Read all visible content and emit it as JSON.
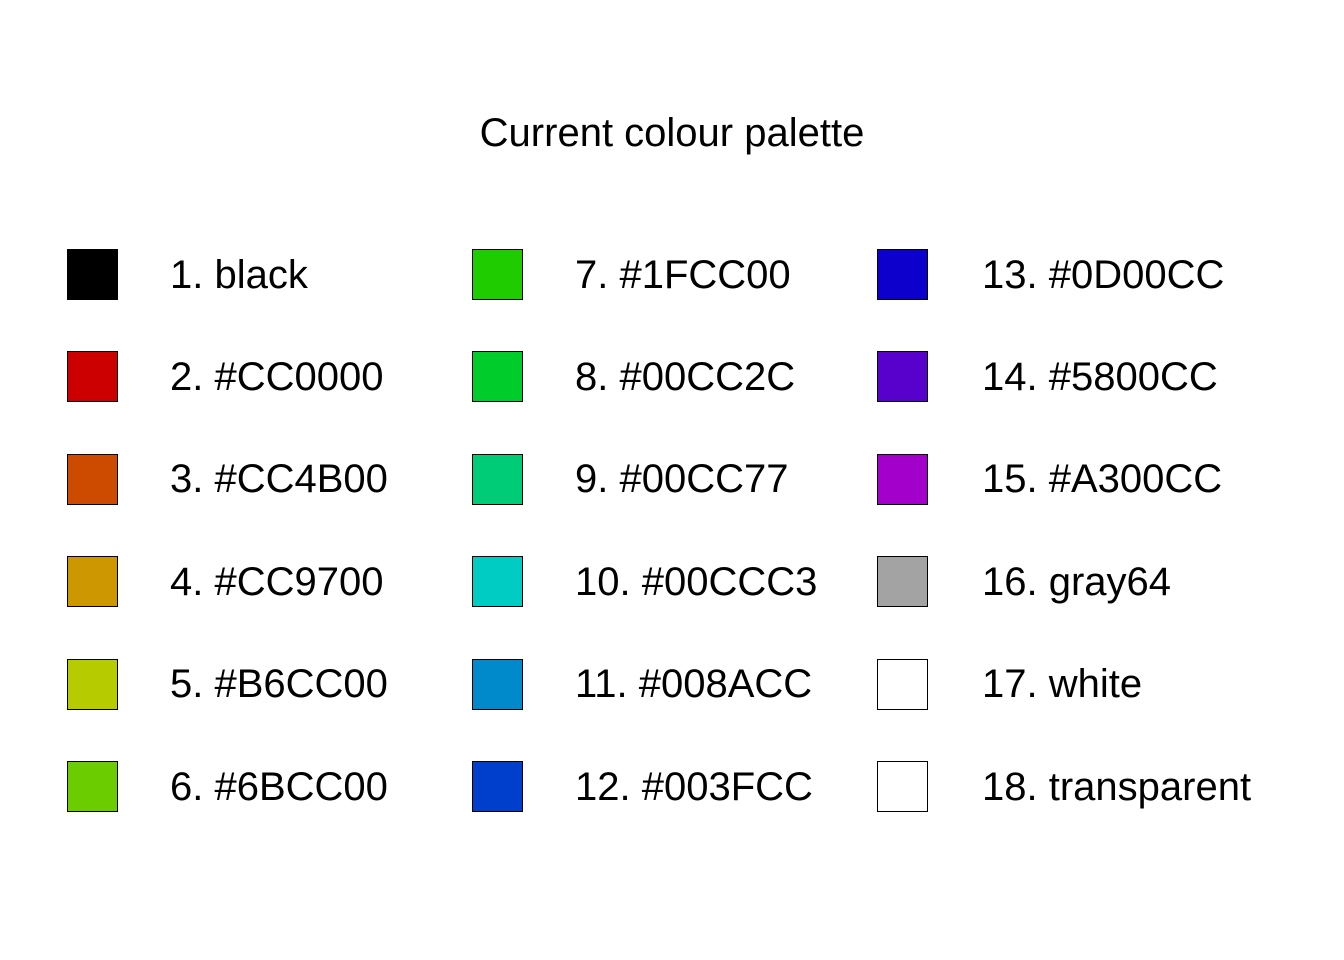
{
  "chart_data": {
    "type": "table",
    "title": "Current colour palette",
    "layout": "3 columns x 6 rows, filled column-wise",
    "entries": [
      {
        "label": "1. black",
        "color": "#000000"
      },
      {
        "label": "2. #CC0000",
        "color": "#CC0000"
      },
      {
        "label": "3. #CC4B00",
        "color": "#CC4B00"
      },
      {
        "label": "4. #CC9700",
        "color": "#CC9700"
      },
      {
        "label": "5. #B6CC00",
        "color": "#B6CC00"
      },
      {
        "label": "6. #6BCC00",
        "color": "#6BCC00"
      },
      {
        "label": "7. #1FCC00",
        "color": "#1FCC00"
      },
      {
        "label": "8. #00CC2C",
        "color": "#00CC2C"
      },
      {
        "label": "9. #00CC77",
        "color": "#00CC77"
      },
      {
        "label": "10. #00CCC3",
        "color": "#00CCC3"
      },
      {
        "label": "11. #008ACC",
        "color": "#008ACC"
      },
      {
        "label": "12. #003FCC",
        "color": "#003FCC"
      },
      {
        "label": "13. #0D00CC",
        "color": "#0D00CC"
      },
      {
        "label": "14. #5800CC",
        "color": "#5800CC"
      },
      {
        "label": "15. #A300CC",
        "color": "#A300CC"
      },
      {
        "label": "16. gray64",
        "color": "#A3A3A3"
      },
      {
        "label": "17. white",
        "color": "#FFFFFF"
      },
      {
        "label": "18. transparent",
        "color": "transparent"
      }
    ]
  }
}
